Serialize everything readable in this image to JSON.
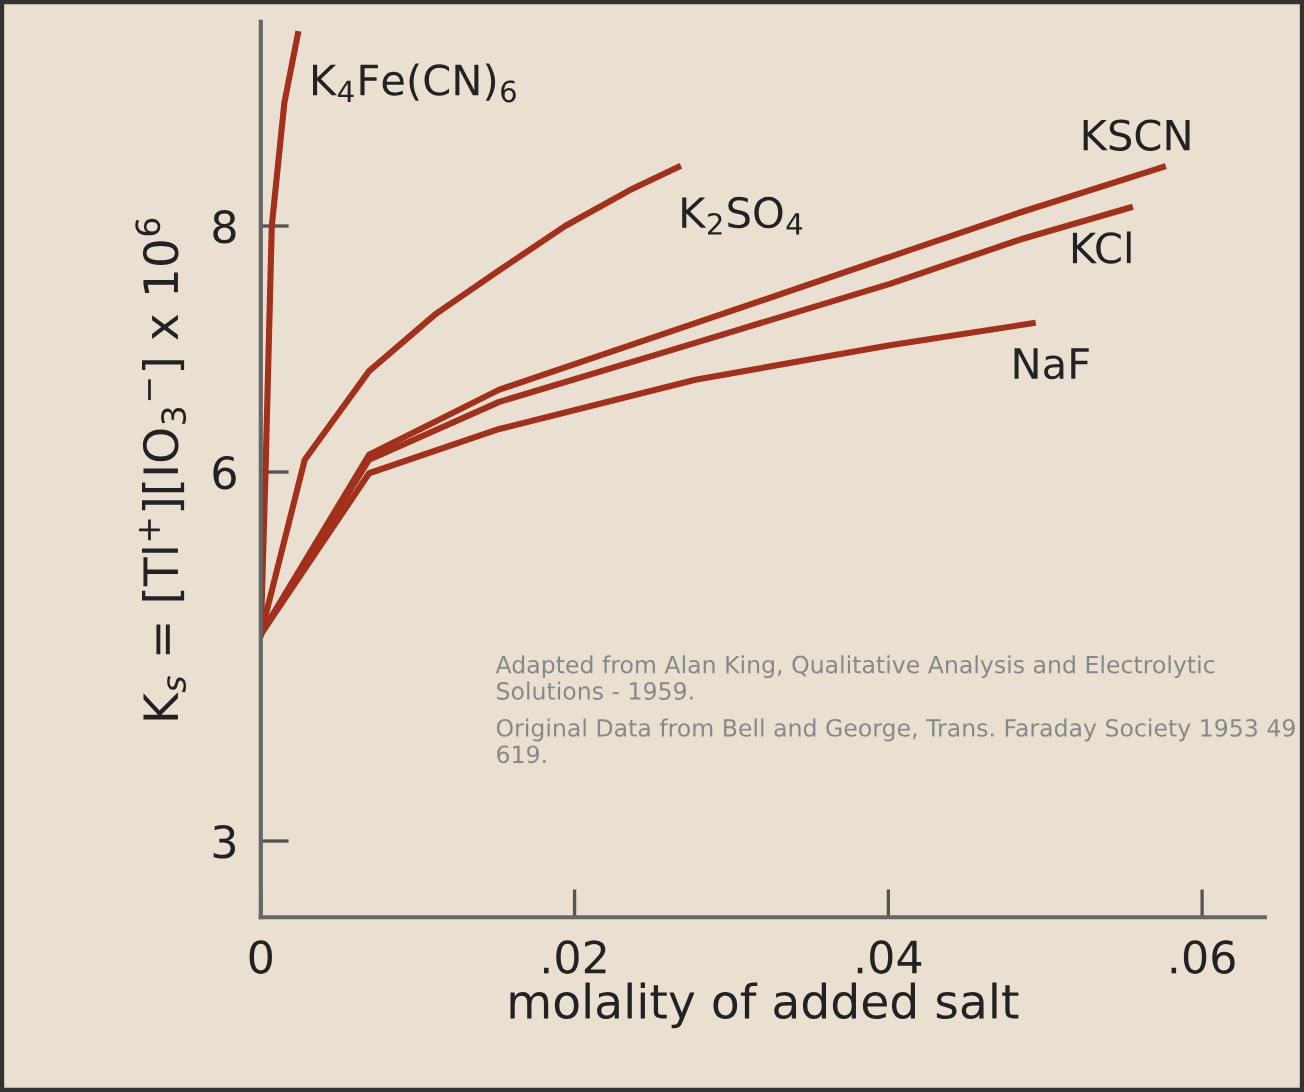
{
  "chart_data": {
    "type": "line",
    "xlabel": "molality of added salt",
    "ylabel": "K$_{s}$ = [Tl$^{+}$][IO$_{3}$$^{−}$] x 10$^{6}$",
    "xlim": [
      0,
      0.064
    ],
    "ylim": [
      2.38,
      9.66
    ],
    "xticks": [
      {
        "value": 0,
        "label": "0"
      },
      {
        "value": 0.02,
        "label": ".02"
      },
      {
        "value": 0.04,
        "label": ".04"
      },
      {
        "value": 0.06,
        "label": ".06"
      }
    ],
    "yticks": [
      3,
      6,
      8
    ],
    "grid": false,
    "legend": false,
    "marker": "none",
    "line_style": "solid",
    "series": [
      {
        "name": "K$_{4}$Fe(CN)$_{6}$",
        "color": "#a3301a",
        "x": [
          0,
          0.0003,
          0.0007,
          0.0015,
          0.00236
        ],
        "values": [
          4.68,
          6,
          8,
          9.0,
          9.56
        ]
      },
      {
        "name": "K$_{2}$SO$_{4}$",
        "color": "#a3301a",
        "x": [
          0,
          0.0028,
          0.0069,
          0.0111,
          0.0152,
          0.0194,
          0.0235,
          0.0266
        ],
        "values": [
          4.68,
          6.1,
          6.82,
          7.28,
          7.64,
          8.0,
          8.29,
          8.48
        ]
      },
      {
        "name": "KSCN",
        "color": "#a3301a",
        "x": [
          0,
          0.0069,
          0.0152,
          0.0277,
          0.0401,
          0.0484,
          0.0575
        ],
        "values": [
          4.68,
          6.14,
          6.67,
          7.21,
          7.75,
          8.11,
          8.48
        ]
      },
      {
        "name": "KCl",
        "color": "#a3301a",
        "x": [
          0,
          0.0069,
          0.0152,
          0.0277,
          0.0401,
          0.0484,
          0.0554
        ],
        "values": [
          4.68,
          6.1,
          6.57,
          7.05,
          7.53,
          7.89,
          8.15
        ]
      },
      {
        "name": "NaF",
        "color": "#a3301a",
        "x": [
          0,
          0.0069,
          0.0152,
          0.0277,
          0.0401,
          0.0492
        ],
        "values": [
          4.68,
          5.99,
          6.35,
          6.75,
          7.03,
          7.21
        ]
      }
    ],
    "annotations": [
      "Adapted from Alan King, Qualitative Analysis and Electrolytic Solutions - 1959.",
      "Original Data from Bell and George, Trans. Faraday Society 1953 49 619."
    ]
  }
}
